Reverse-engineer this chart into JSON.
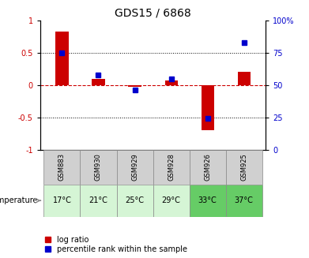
{
  "title": "GDS15 / 6868",
  "categories": [
    "GSM883",
    "GSM930",
    "GSM929",
    "GSM928",
    "GSM926",
    "GSM925"
  ],
  "temperatures": [
    "17°C",
    "21°C",
    "25°C",
    "29°C",
    "33°C",
    "37°C"
  ],
  "log_ratio": [
    0.83,
    0.1,
    -0.02,
    0.07,
    -0.7,
    0.21
  ],
  "percentile_rank": [
    75,
    58,
    46,
    55,
    24,
    83
  ],
  "bar_color": "#cc0000",
  "dot_color": "#0000cc",
  "zero_line_color": "#cc0000",
  "dotted_line_color": "#000000",
  "ylim_left": [
    -1,
    1
  ],
  "ylim_right": [
    0,
    100
  ],
  "yticks_left": [
    -1,
    -0.5,
    0,
    0.5,
    1
  ],
  "yticks_right": [
    0,
    25,
    50,
    75,
    100
  ],
  "ytick_labels_left": [
    "-1",
    "-0.5",
    "0",
    "0.5",
    "1"
  ],
  "ytick_labels_right": [
    "0",
    "25",
    "50",
    "75",
    "100%"
  ],
  "hlines": [
    0.5,
    -0.5
  ],
  "temp_row_colors": [
    "#d5f5d5",
    "#d5f5d5",
    "#d5f5d5",
    "#d5f5d5",
    "#66cc66",
    "#66cc66"
  ],
  "gsm_row_color": "#d0d0d0",
  "bar_width": 0.35,
  "legend_labels": [
    "log ratio",
    "percentile rank within the sample"
  ],
  "legend_colors": [
    "#cc0000",
    "#0000cc"
  ],
  "temp_label_color": "#006600"
}
